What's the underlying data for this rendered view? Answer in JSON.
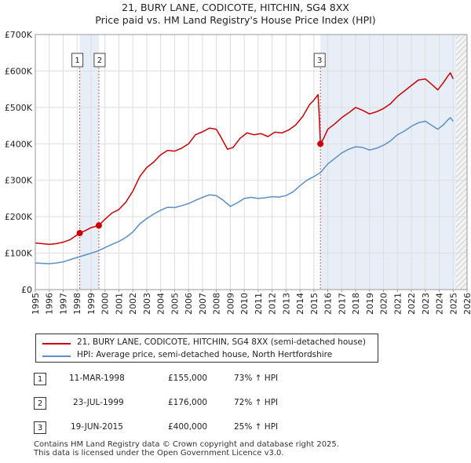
{
  "chart_data": {
    "type": "line",
    "title": "21, BURY LANE, CODICOTE, HITCHIN, SG4 8XX",
    "subtitle": "Price paid vs. HM Land Registry's House Price Index (HPI)",
    "xlabel": "",
    "ylabel": "",
    "xlim": [
      1995,
      2026
    ],
    "ylim": [
      0,
      700000
    ],
    "x_ticks": [
      "1995",
      "1996",
      "1997",
      "1998",
      "1999",
      "2000",
      "2001",
      "2002",
      "2003",
      "2004",
      "2005",
      "2006",
      "2007",
      "2008",
      "2009",
      "2010",
      "2011",
      "2012",
      "2013",
      "2014",
      "2015",
      "2016",
      "2017",
      "2018",
      "2019",
      "2020",
      "2021",
      "2022",
      "2023",
      "2024",
      "2025",
      "2026"
    ],
    "y_ticks": [
      {
        "value": 0,
        "label": "£0"
      },
      {
        "value": 100000,
        "label": "£100K"
      },
      {
        "value": 200000,
        "label": "£200K"
      },
      {
        "value": 300000,
        "label": "£300K"
      },
      {
        "value": 400000,
        "label": "£400K"
      },
      {
        "value": 500000,
        "label": "£500K"
      },
      {
        "value": 600000,
        "label": "£600K"
      },
      {
        "value": 700000,
        "label": "£700K"
      }
    ],
    "grid": true,
    "colors": {
      "property": "#cc0000",
      "hpi": "#5b8fc9",
      "shade": "#e8eef8",
      "sale_marker": "#cc0000"
    },
    "series": [
      {
        "name": "21, BURY LANE, CODICOTE, HITCHIN, SG4 8XX (semi-detached house)",
        "key": "property",
        "points": [
          [
            1995.0,
            128000
          ],
          [
            1995.5,
            126000
          ],
          [
            1996.0,
            124000
          ],
          [
            1996.5,
            126000
          ],
          [
            1997.0,
            130000
          ],
          [
            1997.5,
            137000
          ],
          [
            1997.8,
            145000
          ],
          [
            1998.19,
            155000
          ],
          [
            1998.6,
            162000
          ],
          [
            1999.0,
            170000
          ],
          [
            1999.56,
            176000
          ],
          [
            2000.0,
            193000
          ],
          [
            2000.5,
            210000
          ],
          [
            2001.0,
            220000
          ],
          [
            2001.5,
            240000
          ],
          [
            2002.0,
            270000
          ],
          [
            2002.5,
            310000
          ],
          [
            2003.0,
            335000
          ],
          [
            2003.5,
            350000
          ],
          [
            2004.0,
            370000
          ],
          [
            2004.5,
            382000
          ],
          [
            2005.0,
            380000
          ],
          [
            2005.5,
            388000
          ],
          [
            2006.0,
            400000
          ],
          [
            2006.5,
            425000
          ],
          [
            2007.0,
            433000
          ],
          [
            2007.5,
            443000
          ],
          [
            2008.0,
            440000
          ],
          [
            2008.3,
            420000
          ],
          [
            2008.8,
            385000
          ],
          [
            2009.2,
            390000
          ],
          [
            2009.7,
            415000
          ],
          [
            2010.2,
            430000
          ],
          [
            2010.7,
            425000
          ],
          [
            2011.2,
            428000
          ],
          [
            2011.7,
            420000
          ],
          [
            2012.2,
            432000
          ],
          [
            2012.7,
            430000
          ],
          [
            2013.2,
            438000
          ],
          [
            2013.7,
            452000
          ],
          [
            2014.2,
            475000
          ],
          [
            2014.7,
            508000
          ],
          [
            2015.0,
            520000
          ],
          [
            2015.3,
            535000
          ],
          [
            2015.4,
            465000
          ],
          [
            2015.47,
            400000
          ],
          [
            2015.7,
            415000
          ],
          [
            2016.0,
            440000
          ],
          [
            2016.5,
            455000
          ],
          [
            2017.0,
            472000
          ],
          [
            2017.5,
            485000
          ],
          [
            2018.0,
            500000
          ],
          [
            2018.5,
            492000
          ],
          [
            2019.0,
            482000
          ],
          [
            2019.5,
            488000
          ],
          [
            2020.0,
            497000
          ],
          [
            2020.5,
            510000
          ],
          [
            2021.0,
            530000
          ],
          [
            2021.5,
            545000
          ],
          [
            2022.0,
            560000
          ],
          [
            2022.5,
            575000
          ],
          [
            2023.0,
            578000
          ],
          [
            2023.5,
            562000
          ],
          [
            2023.9,
            548000
          ],
          [
            2024.3,
            568000
          ],
          [
            2024.6,
            585000
          ],
          [
            2024.8,
            595000
          ],
          [
            2025.0,
            578000
          ]
        ]
      },
      {
        "name": "HPI: Average price, semi-detached house, North Hertfordshire",
        "key": "hpi",
        "points": [
          [
            1995.0,
            73000
          ],
          [
            1995.5,
            72000
          ],
          [
            1996.0,
            71000
          ],
          [
            1996.5,
            73000
          ],
          [
            1997.0,
            76000
          ],
          [
            1997.5,
            82000
          ],
          [
            1998.0,
            88000
          ],
          [
            1998.5,
            94000
          ],
          [
            1999.0,
            100000
          ],
          [
            1999.5,
            106000
          ],
          [
            2000.0,
            115000
          ],
          [
            2000.5,
            124000
          ],
          [
            2001.0,
            132000
          ],
          [
            2001.5,
            143000
          ],
          [
            2002.0,
            158000
          ],
          [
            2002.5,
            180000
          ],
          [
            2003.0,
            195000
          ],
          [
            2003.5,
            207000
          ],
          [
            2004.0,
            218000
          ],
          [
            2004.5,
            226000
          ],
          [
            2005.0,
            225000
          ],
          [
            2005.5,
            230000
          ],
          [
            2006.0,
            236000
          ],
          [
            2006.5,
            245000
          ],
          [
            2007.0,
            253000
          ],
          [
            2007.5,
            260000
          ],
          [
            2008.0,
            258000
          ],
          [
            2008.5,
            245000
          ],
          [
            2009.0,
            228000
          ],
          [
            2009.5,
            238000
          ],
          [
            2010.0,
            250000
          ],
          [
            2010.5,
            253000
          ],
          [
            2011.0,
            250000
          ],
          [
            2011.5,
            252000
          ],
          [
            2012.0,
            255000
          ],
          [
            2012.5,
            254000
          ],
          [
            2013.0,
            258000
          ],
          [
            2013.5,
            268000
          ],
          [
            2014.0,
            285000
          ],
          [
            2014.5,
            300000
          ],
          [
            2015.0,
            310000
          ],
          [
            2015.5,
            322000
          ],
          [
            2016.0,
            345000
          ],
          [
            2016.5,
            360000
          ],
          [
            2017.0,
            375000
          ],
          [
            2017.5,
            385000
          ],
          [
            2018.0,
            392000
          ],
          [
            2018.5,
            390000
          ],
          [
            2019.0,
            383000
          ],
          [
            2019.5,
            388000
          ],
          [
            2020.0,
            396000
          ],
          [
            2020.5,
            408000
          ],
          [
            2021.0,
            425000
          ],
          [
            2021.5,
            435000
          ],
          [
            2022.0,
            448000
          ],
          [
            2022.5,
            458000
          ],
          [
            2023.0,
            462000
          ],
          [
            2023.5,
            450000
          ],
          [
            2023.9,
            440000
          ],
          [
            2024.3,
            452000
          ],
          [
            2024.6,
            465000
          ],
          [
            2024.8,
            472000
          ],
          [
            2025.0,
            462000
          ]
        ]
      }
    ],
    "sales": [
      {
        "num": "1",
        "x": 1998.19,
        "value": 155000,
        "date": "11-MAR-1998",
        "price": "£155,000",
        "hpi": "73% ↑ HPI"
      },
      {
        "num": "2",
        "x": 1999.56,
        "value": 176000,
        "date": "23-JUL-1999",
        "price": "£176,000",
        "hpi": "72% ↑ HPI"
      },
      {
        "num": "3",
        "x": 2015.47,
        "value": 400000,
        "date": "19-JUN-2015",
        "price": "£400,000",
        "hpi": "25% ↑ HPI"
      }
    ],
    "shaded_ranges": [
      [
        1998.19,
        1999.56
      ],
      [
        2015.47,
        2025.2
      ]
    ],
    "hatched_from": 2025.2
  },
  "legend": {
    "property_label": "21, BURY LANE, CODICOTE, HITCHIN, SG4 8XX (semi-detached house)",
    "hpi_label": "HPI: Average price, semi-detached house, North Hertfordshire"
  },
  "footer": {
    "line1": "Contains HM Land Registry data © Crown copyright and database right 2025.",
    "line2": "This data is licensed under the Open Government Licence v3.0."
  }
}
